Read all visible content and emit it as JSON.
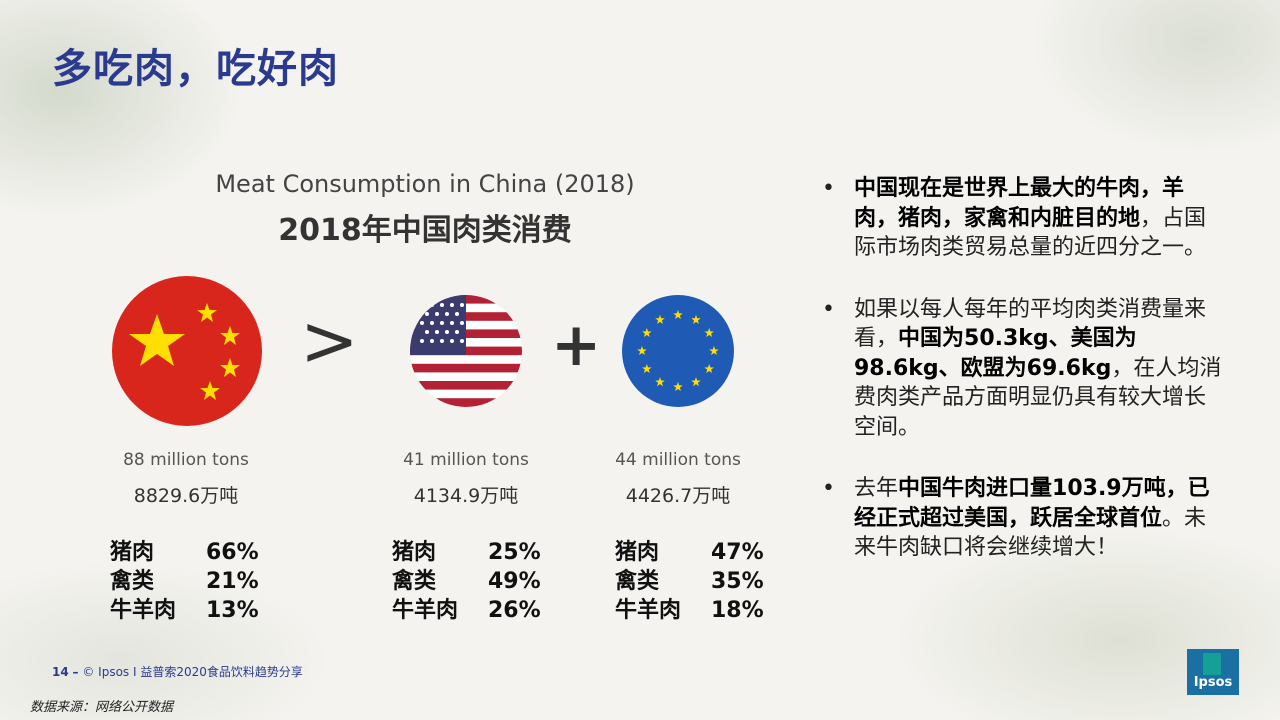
{
  "page": {
    "title": "多吃肉，吃好肉"
  },
  "chart": {
    "title_en": "Meat Consumption in China (2018)",
    "title_cn": "2018年中国肉类消费",
    "operators": {
      "greater": ">",
      "plus": "+"
    },
    "regions": [
      {
        "flag": "china-flag-icon",
        "tons_en": "88 million tons",
        "tons_cn": "8829.6万吨",
        "breakdown": [
          {
            "cat": "猪肉",
            "pct": "66%"
          },
          {
            "cat": "禽类",
            "pct": "21%"
          },
          {
            "cat": "牛羊肉",
            "pct": "13%"
          }
        ]
      },
      {
        "flag": "usa-flag-icon",
        "tons_en": "41 million tons",
        "tons_cn": "4134.9万吨",
        "breakdown": [
          {
            "cat": "猪肉",
            "pct": "25%"
          },
          {
            "cat": "禽类",
            "pct": "49%"
          },
          {
            "cat": "牛羊肉",
            "pct": "26%"
          }
        ]
      },
      {
        "flag": "eu-flag-icon",
        "tons_en": "44 million tons",
        "tons_cn": "4426.7万吨",
        "breakdown": [
          {
            "cat": "猪肉",
            "pct": "47%"
          },
          {
            "cat": "禽类",
            "pct": "35%"
          },
          {
            "cat": "牛羊肉",
            "pct": "18%"
          }
        ]
      }
    ]
  },
  "bullets": [
    {
      "bold": "中国现在是世界上最大的牛肉，羊肉，猪肉，家禽和内脏目的地",
      "rest": "，占国际市场肉类贸易总量的近四分之一。"
    },
    {
      "pre": "如果以每人每年的平均肉类消费量来看，",
      "bold": "中国为50.3kg、美国为98.6kg、欧盟为69.6kg",
      "rest": "，在人均消费肉类产品方面明显仍具有较大增长空间。"
    },
    {
      "pre": "去年",
      "bold": "中国牛肉进口量103.9万吨，已经正式超过美国，跃居全球首位",
      "rest": "。未来牛肉缺口将会继续增大！"
    }
  ],
  "footer": {
    "page_number": "14",
    "dash": "–",
    "text": "© Ipsos I 益普索2020食品饮料趋势分享"
  },
  "source": "数据来源：网络公开数据",
  "logo": {
    "text": "Ipsos"
  },
  "colors": {
    "title": "#2a3b8f",
    "china_red": "#d9261c",
    "star_yellow": "#ffde00",
    "us_blue": "#3c3b6e",
    "us_red": "#b22234",
    "eu_blue": "#1f5bb5",
    "eu_star": "#ffdd00"
  }
}
